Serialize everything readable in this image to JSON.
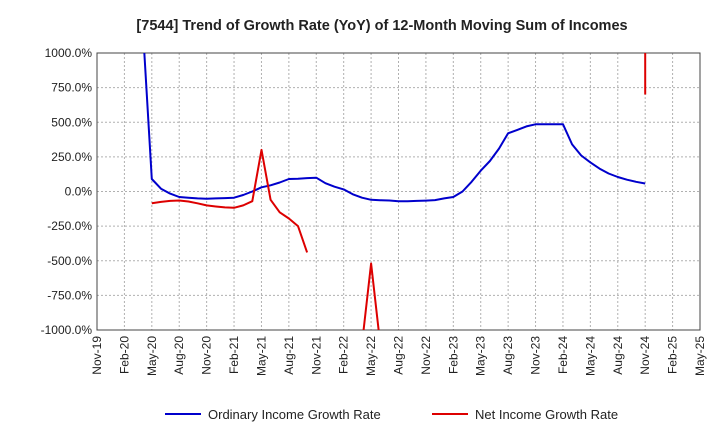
{
  "chart_data": {
    "type": "line",
    "title": "[7544]  Trend of Growth Rate (YoY) of 12-Month Moving Sum of Incomes",
    "xlabel": "",
    "ylabel": "",
    "ylim": [
      -1000,
      1000
    ],
    "y_ticks": [
      1000,
      750,
      500,
      250,
      0,
      -250,
      -500,
      -750,
      -1000
    ],
    "y_tick_labels": [
      "1000.0%",
      "750.0%",
      "500.0%",
      "250.0%",
      "0.0%",
      "-250.0%",
      "-500.0%",
      "-750.0%",
      "-1000.0%"
    ],
    "x_range": [
      "2019-11",
      "2025-05"
    ],
    "x_tick_labels": [
      "Nov-19",
      "Feb-20",
      "May-20",
      "Aug-20",
      "Nov-20",
      "Feb-21",
      "May-21",
      "Aug-21",
      "Nov-21",
      "Feb-22",
      "May-22",
      "Aug-22",
      "Nov-22",
      "Feb-23",
      "May-23",
      "Aug-23",
      "Nov-23",
      "Feb-24",
      "May-24",
      "Aug-24",
      "Nov-24",
      "Feb-25",
      "May-25"
    ],
    "grid": true,
    "legend_position": "bottom",
    "series": [
      {
        "name": "Ordinary Income Growth Rate",
        "color": "#0000cc",
        "points": [
          [
            "2020-04",
            1200
          ],
          [
            "2020-05",
            90
          ],
          [
            "2020-06",
            20
          ],
          [
            "2020-07",
            -15
          ],
          [
            "2020-08",
            -40
          ],
          [
            "2020-09",
            -45
          ],
          [
            "2020-10",
            -50
          ],
          [
            "2020-11",
            -52
          ],
          [
            "2020-12",
            -50
          ],
          [
            "2021-01",
            -48
          ],
          [
            "2021-02",
            -45
          ],
          [
            "2021-03",
            -25
          ],
          [
            "2021-04",
            0
          ],
          [
            "2021-05",
            30
          ],
          [
            "2021-06",
            45
          ],
          [
            "2021-07",
            65
          ],
          [
            "2021-08",
            90
          ],
          [
            "2021-09",
            92
          ],
          [
            "2021-10",
            97
          ],
          [
            "2021-11",
            100
          ],
          [
            "2021-12",
            60
          ],
          [
            "2022-01",
            35
          ],
          [
            "2022-02",
            15
          ],
          [
            "2022-03",
            -20
          ],
          [
            "2022-04",
            -45
          ],
          [
            "2022-05",
            -60
          ],
          [
            "2022-06",
            -63
          ],
          [
            "2022-07",
            -65
          ],
          [
            "2022-08",
            -70
          ],
          [
            "2022-09",
            -70
          ],
          [
            "2022-10",
            -68
          ],
          [
            "2022-11",
            -66
          ],
          [
            "2022-12",
            -62
          ],
          [
            "2023-01",
            -50
          ],
          [
            "2023-02",
            -40
          ],
          [
            "2023-03",
            0
          ],
          [
            "2023-04",
            70
          ],
          [
            "2023-05",
            150
          ],
          [
            "2023-06",
            220
          ],
          [
            "2023-07",
            310
          ],
          [
            "2023-08",
            420
          ],
          [
            "2023-09",
            445
          ],
          [
            "2023-10",
            470
          ],
          [
            "2023-11",
            485
          ],
          [
            "2023-12",
            485
          ],
          [
            "2024-01",
            485
          ],
          [
            "2024-02",
            485
          ],
          [
            "2024-03",
            340
          ],
          [
            "2024-04",
            260
          ],
          [
            "2024-05",
            210
          ],
          [
            "2024-06",
            165
          ],
          [
            "2024-07",
            130
          ],
          [
            "2024-08",
            105
          ],
          [
            "2024-09",
            85
          ],
          [
            "2024-10",
            70
          ],
          [
            "2024-11",
            58
          ]
        ]
      },
      {
        "name": "Net Income Growth Rate",
        "color": "#dd0000",
        "segments": [
          [
            [
              "2020-05",
              -85
            ],
            [
              "2020-06",
              -75
            ],
            [
              "2020-07",
              -68
            ],
            [
              "2020-08",
              -65
            ],
            [
              "2020-09",
              -72
            ],
            [
              "2020-10",
              -85
            ],
            [
              "2020-11",
              -100
            ],
            [
              "2020-12",
              -108
            ],
            [
              "2021-01",
              -115
            ],
            [
              "2021-02",
              -118
            ],
            [
              "2021-03",
              -100
            ],
            [
              "2021-04",
              -70
            ],
            [
              "2021-05",
              300
            ],
            [
              "2021-06",
              -60
            ],
            [
              "2021-07",
              -150
            ],
            [
              "2021-08",
              -195
            ],
            [
              "2021-09",
              -250
            ],
            [
              "2021-10",
              -440
            ]
          ],
          [
            [
              "2022-04",
              -1100
            ],
            [
              "2022-05",
              -520
            ],
            [
              "2022-06",
              -1100
            ]
          ],
          [
            [
              "2024-11",
              1100
            ],
            [
              "2024-11",
              700
            ]
          ]
        ]
      }
    ]
  }
}
